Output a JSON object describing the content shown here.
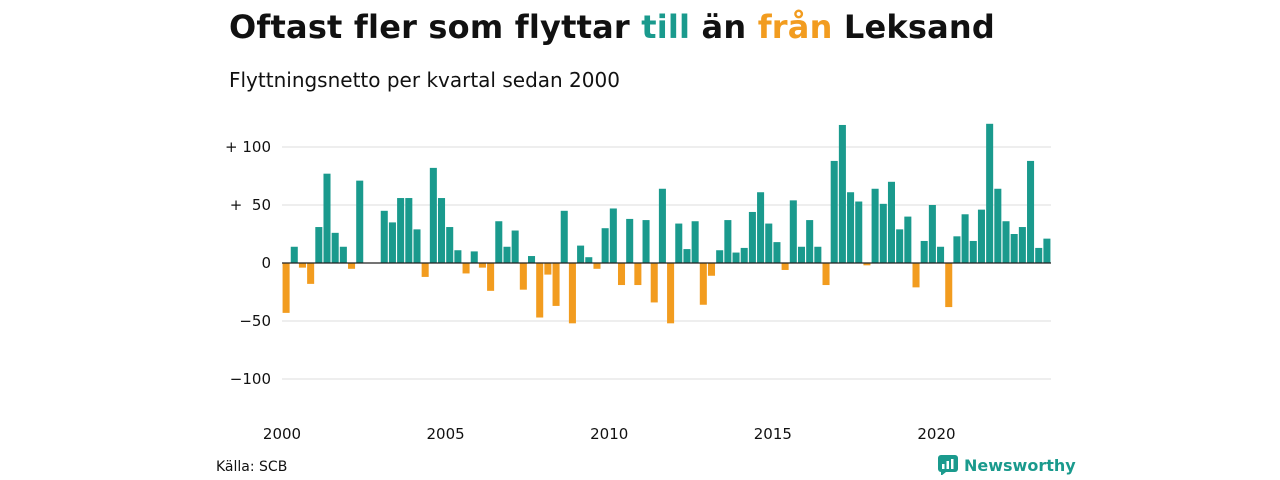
{
  "header": {
    "title_part1": "Oftast fler som flyttar ",
    "title_pos_word": "till",
    "title_part2": " än ",
    "title_neg_word": "från",
    "title_part3": " Leksand",
    "subtitle": "Flyttningsnetto per kvartal sedan 2000"
  },
  "footer": {
    "source": "Källa: SCB",
    "brand": "Newsworthy"
  },
  "colors": {
    "positive": "#1a9a8d",
    "negative": "#f29c1f"
  },
  "chart_data": {
    "type": "bar",
    "title": "Oftast fler som flyttar till än från Leksand",
    "subtitle": "Flyttningsnetto per kvartal sedan 2000",
    "xlabel": "",
    "ylabel": "",
    "ylim": [
      -120,
      125
    ],
    "xlim": [
      2000,
      2023.5
    ],
    "y_ticks": [
      100,
      50,
      0,
      -50,
      -100
    ],
    "y_tick_labels": [
      "+ 100",
      "+  50",
      "0",
      "−50",
      "−100"
    ],
    "x_ticks": [
      2000,
      2005,
      2010,
      2015,
      2020
    ],
    "x_tick_labels": [
      "2000",
      "2005",
      "2010",
      "2015",
      "2020"
    ],
    "grid": true,
    "legend": "none",
    "start": "2000 Q1",
    "frequency": "quarterly",
    "series": [
      {
        "values": [
          -43,
          14,
          -4,
          -18,
          31,
          77,
          26,
          14,
          -5,
          71,
          0,
          0,
          45,
          35,
          56,
          56,
          29,
          -12,
          82,
          56,
          31,
          11,
          -9,
          10,
          -4,
          -24,
          36,
          14,
          28,
          -23,
          6,
          -47,
          -10,
          -37,
          45,
          -52,
          15,
          5,
          -5,
          30,
          47,
          -19,
          38,
          -19,
          37,
          -34,
          64,
          -52,
          34,
          12,
          36,
          -36,
          -11,
          11,
          37,
          9,
          13,
          44,
          61,
          34,
          18,
          -6,
          54,
          14,
          37,
          14,
          -19,
          88,
          119,
          61,
          53,
          -2,
          64,
          51,
          70,
          29,
          40,
          -21,
          19,
          50,
          14,
          -38,
          23,
          42,
          19,
          46,
          120,
          64,
          36,
          25,
          31,
          88,
          13,
          21
        ]
      }
    ]
  }
}
